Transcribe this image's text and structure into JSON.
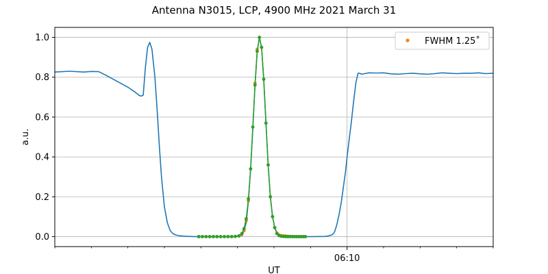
{
  "chart_data": {
    "type": "line",
    "title": "Antenna N3015, LCP, 4900 MHz 2021 March 31",
    "xlabel": "UT",
    "ylabel": "a.u.",
    "x_unit": "minutes",
    "xlim": [
      -40,
      20
    ],
    "ylim": [
      -0.05,
      1.05
    ],
    "x_ticks": [
      {
        "value": 0,
        "label": "06:10"
      }
    ],
    "x_minor_ticks": [
      -40,
      -35,
      -30,
      -25,
      -20,
      -15,
      -10,
      -5,
      5,
      10,
      15,
      20
    ],
    "y_ticks": [
      0.0,
      0.2,
      0.4,
      0.6,
      0.8,
      1.0
    ],
    "y_tick_labels": [
      "0.0",
      "0.2",
      "0.4",
      "0.6",
      "0.8",
      "1.0"
    ],
    "grid": true,
    "legend": {
      "position": "top-right",
      "entries": [
        {
          "label": "FWHM 1.25$^\\circ$",
          "display": "FWHM 1.25˚",
          "color": "#ff7f0e"
        }
      ]
    },
    "series": [
      {
        "color": "#1f77b4",
        "kind": "line",
        "x": [
          -40,
          -38,
          -36,
          -35,
          -34,
          -33,
          -32,
          -31,
          -30,
          -29,
          -28.5,
          -28.2,
          -27.9,
          -27.6,
          -27.3,
          -27,
          -26.7,
          -26.3,
          -26,
          -25.7,
          -25.4,
          -25,
          -24.6,
          -24.2,
          -23.8,
          -23.4,
          -23,
          -22.5,
          -22,
          -21.5,
          -21,
          -20,
          -18,
          -16,
          -15,
          -14.6,
          -14.2,
          -13.8,
          -13.5,
          -13.2,
          -12.9,
          -12.6,
          -12.3,
          -12,
          -11.7,
          -11.4,
          -11.1,
          -10.8,
          -10.5,
          -10.2,
          -9.9,
          -9.6,
          -9.3,
          -9,
          -8.5,
          -8,
          -7,
          -6,
          -5,
          -4.5,
          -3,
          -2.5,
          -2,
          -1.7,
          -1.4,
          -1.1,
          -0.8,
          -0.5,
          -0.2,
          0,
          0.3,
          0.6,
          0.9,
          1.2,
          1.5,
          1.7,
          2,
          3,
          4,
          5,
          6,
          7,
          8,
          9,
          10,
          11,
          12,
          13,
          14,
          15,
          16,
          17,
          18,
          19,
          20
        ],
        "y": [
          0.826,
          0.83,
          0.826,
          0.829,
          0.828,
          0.81,
          0.79,
          0.77,
          0.75,
          0.725,
          0.71,
          0.705,
          0.71,
          0.85,
          0.95,
          0.975,
          0.94,
          0.8,
          0.64,
          0.46,
          0.3,
          0.15,
          0.07,
          0.03,
          0.014,
          0.008,
          0.005,
          0.003,
          0.002,
          0.001,
          0.0,
          0.0,
          0.0,
          0.0,
          0.001,
          0.005,
          0.02,
          0.07,
          0.18,
          0.34,
          0.54,
          0.76,
          0.93,
          1.0,
          0.95,
          0.78,
          0.57,
          0.36,
          0.2,
          0.1,
          0.045,
          0.02,
          0.01,
          0.005,
          0.003,
          0.001,
          0.0,
          0.0,
          0.0,
          0.0,
          0.001,
          0.004,
          0.01,
          0.025,
          0.06,
          0.11,
          0.17,
          0.25,
          0.33,
          0.4,
          0.49,
          0.58,
          0.68,
          0.77,
          0.82,
          0.82,
          0.815,
          0.822,
          0.821,
          0.822,
          0.817,
          0.815,
          0.818,
          0.82,
          0.817,
          0.815,
          0.818,
          0.822,
          0.82,
          0.818,
          0.82,
          0.82,
          0.822,
          0.818,
          0.82
        ]
      },
      {
        "name": "FWHM 1.25˚",
        "color": "#ff7f0e",
        "kind": "scatter",
        "x": [
          -20.3,
          -19.8,
          -19.3,
          -18.8,
          -18.3,
          -17.8,
          -17.3,
          -16.8,
          -16.3,
          -15.8,
          -15.3,
          -14.8,
          -14.4,
          -14.1,
          -13.8,
          -13.5,
          -13.2,
          -12.9,
          -12.6,
          -12.3,
          -12.0,
          -11.7,
          -11.4,
          -11.1,
          -10.8,
          -10.5,
          -10.2,
          -9.9,
          -9.6,
          -9.3,
          -9.0,
          -8.7,
          -8.4,
          -8.1,
          -7.8,
          -7.5,
          -7.2,
          -6.9,
          -6.6,
          -6.3,
          -6.0,
          -5.7
        ],
        "y": [
          0,
          0,
          0,
          0,
          0,
          0,
          0,
          0,
          0,
          0,
          0.001,
          0.003,
          0.01,
          0.03,
          0.08,
          0.18,
          0.34,
          0.55,
          0.77,
          0.94,
          1.0,
          0.95,
          0.79,
          0.57,
          0.36,
          0.2,
          0.1,
          0.045,
          0.018,
          0.008,
          0.005,
          0.004,
          0.003,
          0.002,
          0.001,
          0.001,
          0,
          0,
          0,
          0,
          0,
          0
        ]
      },
      {
        "color": "#2ca02c",
        "kind": "line-markers",
        "x": [
          -20.3,
          -19.8,
          -19.3,
          -18.8,
          -18.3,
          -17.8,
          -17.3,
          -16.8,
          -16.3,
          -15.8,
          -15.3,
          -14.8,
          -14.4,
          -14.1,
          -13.8,
          -13.5,
          -13.2,
          -12.9,
          -12.6,
          -12.3,
          -12.0,
          -11.7,
          -11.4,
          -11.1,
          -10.8,
          -10.5,
          -10.2,
          -9.9,
          -9.6,
          -9.3,
          -9.0,
          -8.7,
          -8.4,
          -8.1,
          -7.8,
          -7.5,
          -7.2,
          -6.9,
          -6.6,
          -6.3,
          -6.0,
          -5.7
        ],
        "y": [
          0,
          0,
          0,
          0,
          0,
          0,
          0,
          0,
          0,
          0,
          0.001,
          0.004,
          0.015,
          0.04,
          0.09,
          0.19,
          0.34,
          0.55,
          0.76,
          0.93,
          1.0,
          0.95,
          0.79,
          0.57,
          0.36,
          0.2,
          0.1,
          0.045,
          0.015,
          0.005,
          0.002,
          0.001,
          0,
          0,
          0,
          0,
          0,
          0,
          0,
          0,
          0,
          0
        ]
      }
    ]
  }
}
